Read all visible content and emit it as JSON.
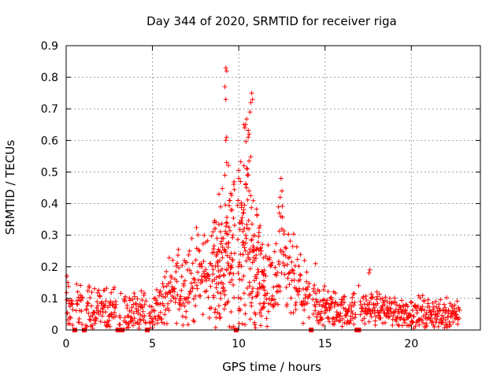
{
  "chart_data": {
    "type": "scatter",
    "title": "Day 344 of 2020, SRMTID for receiver riga",
    "xlabel": "GPS time / hours",
    "ylabel": "SRMTID / TECUs",
    "xlim": [
      0,
      24
    ],
    "ylim": [
      0,
      0.9
    ],
    "x_ticks": [
      0,
      5,
      10,
      15,
      20
    ],
    "y_ticks": [
      0,
      0.1,
      0.2,
      0.3,
      0.4,
      0.5,
      0.6,
      0.7,
      0.8,
      0.9
    ],
    "x_tick_labels": [
      "0",
      "5",
      "10",
      "15",
      "20"
    ],
    "y_tick_labels": [
      "0",
      "0.1",
      "0.2",
      "0.3",
      "0.4",
      "0.5",
      "0.6",
      "0.7",
      "0.8",
      "0.9"
    ],
    "grid": true,
    "marker": "plus",
    "color": "#ff0000",
    "data_gaps_hours": [
      0.5,
      1.05,
      3.0,
      3.25,
      4.7,
      9.85,
      14.2,
      16.85,
      16.95
    ],
    "trend": [
      [
        0.0,
        0.08
      ],
      [
        1.0,
        0.065
      ],
      [
        2.0,
        0.07
      ],
      [
        3.0,
        0.065
      ],
      [
        4.0,
        0.055
      ],
      [
        5.0,
        0.06
      ],
      [
        6.0,
        0.11
      ],
      [
        7.0,
        0.15
      ],
      [
        8.0,
        0.17
      ],
      [
        9.0,
        0.2
      ],
      [
        9.5,
        0.25
      ],
      [
        10.0,
        0.26
      ],
      [
        10.5,
        0.3
      ],
      [
        11.0,
        0.2
      ],
      [
        11.5,
        0.13
      ],
      [
        12.0,
        0.12
      ],
      [
        12.5,
        0.2
      ],
      [
        13.0,
        0.16
      ],
      [
        13.5,
        0.13
      ],
      [
        14.0,
        0.09
      ],
      [
        14.5,
        0.08
      ],
      [
        15.0,
        0.07
      ],
      [
        16.0,
        0.06
      ],
      [
        17.0,
        0.065
      ],
      [
        18.0,
        0.07
      ],
      [
        19.0,
        0.06
      ],
      [
        20.0,
        0.055
      ],
      [
        21.0,
        0.05
      ],
      [
        22.0,
        0.05
      ],
      [
        22.8,
        0.06
      ]
    ],
    "spread": [
      [
        0.0,
        0.035
      ],
      [
        5.0,
        0.03
      ],
      [
        6.0,
        0.05
      ],
      [
        8.0,
        0.07
      ],
      [
        9.0,
        0.1
      ],
      [
        10.5,
        0.16
      ],
      [
        11.5,
        0.06
      ],
      [
        12.5,
        0.09
      ],
      [
        14.0,
        0.04
      ],
      [
        16.0,
        0.025
      ],
      [
        22.8,
        0.025
      ]
    ],
    "peaks": [
      {
        "x": 9.25,
        "y": 0.83
      },
      {
        "x": 9.3,
        "y": 0.82
      },
      {
        "x": 9.2,
        "y": 0.77
      },
      {
        "x": 9.25,
        "y": 0.73
      },
      {
        "x": 9.3,
        "y": 0.61
      },
      {
        "x": 9.25,
        "y": 0.6
      },
      {
        "x": 9.3,
        "y": 0.53
      },
      {
        "x": 9.2,
        "y": 0.49
      },
      {
        "x": 10.75,
        "y": 0.75
      },
      {
        "x": 10.7,
        "y": 0.72
      },
      {
        "x": 10.8,
        "y": 0.73
      },
      {
        "x": 10.65,
        "y": 0.69
      },
      {
        "x": 10.3,
        "y": 0.65
      },
      {
        "x": 10.4,
        "y": 0.65
      },
      {
        "x": 10.35,
        "y": 0.64
      },
      {
        "x": 10.6,
        "y": 0.62
      },
      {
        "x": 10.55,
        "y": 0.61
      },
      {
        "x": 10.3,
        "y": 0.52
      },
      {
        "x": 10.5,
        "y": 0.51
      },
      {
        "x": 10.0,
        "y": 0.48
      },
      {
        "x": 10.1,
        "y": 0.47
      },
      {
        "x": 10.4,
        "y": 0.46
      },
      {
        "x": 10.45,
        "y": 0.45
      },
      {
        "x": 10.6,
        "y": 0.44
      },
      {
        "x": 12.45,
        "y": 0.48
      },
      {
        "x": 12.5,
        "y": 0.44
      },
      {
        "x": 12.4,
        "y": 0.42
      },
      {
        "x": 12.3,
        "y": 0.39
      },
      {
        "x": 12.35,
        "y": 0.37
      },
      {
        "x": 8.85,
        "y": 0.43
      },
      {
        "x": 8.95,
        "y": 0.39
      },
      {
        "x": 9.45,
        "y": 0.41
      },
      {
        "x": 9.55,
        "y": 0.38
      },
      {
        "x": 0.05,
        "y": 0.17
      },
      {
        "x": 0.1,
        "y": 0.15
      },
      {
        "x": 14.45,
        "y": 0.21
      },
      {
        "x": 17.6,
        "y": 0.19
      },
      {
        "x": 17.55,
        "y": 0.18
      },
      {
        "x": 16.95,
        "y": 0.14
      },
      {
        "x": 8.0,
        "y": 0.3
      },
      {
        "x": 7.15,
        "y": 0.25
      },
      {
        "x": 6.85,
        "y": 0.22
      }
    ]
  }
}
